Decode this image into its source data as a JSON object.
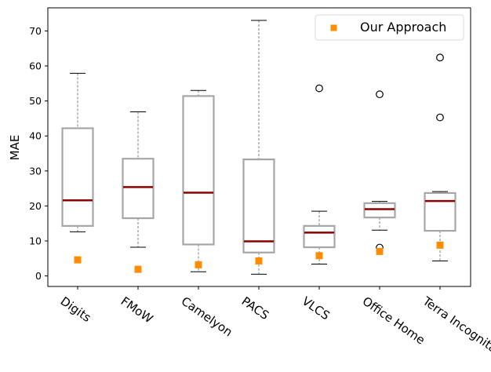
{
  "chart_data": {
    "type": "box",
    "title": "",
    "xlabel": "",
    "ylabel": "MAE",
    "ylim": [
      -3,
      76.6
    ],
    "yticks": [
      0,
      10,
      20,
      30,
      40,
      50,
      60,
      70
    ],
    "grid": false,
    "legend": {
      "position": "top-right",
      "entries": [
        "Our Approach"
      ]
    },
    "categories": [
      "Digits",
      "FMoW",
      "Camelyon",
      "PACS",
      "VLCS",
      "Office Home",
      "Terra Incognita"
    ],
    "boxes": [
      {
        "whisker_low": 12.6,
        "q1": 14.3,
        "median": 21.6,
        "q3": 42.2,
        "whisker_high": 57.9,
        "outliers": []
      },
      {
        "whisker_low": 8.2,
        "q1": 16.5,
        "median": 25.4,
        "q3": 33.5,
        "whisker_high": 46.9,
        "outliers": []
      },
      {
        "whisker_low": 1.2,
        "q1": 9.0,
        "median": 23.8,
        "q3": 51.4,
        "whisker_high": 53.0,
        "outliers": []
      },
      {
        "whisker_low": 0.5,
        "q1": 6.7,
        "median": 9.9,
        "q3": 33.3,
        "whisker_high": 73.0,
        "outliers": []
      },
      {
        "whisker_low": 3.4,
        "q1": 8.2,
        "median": 12.4,
        "q3": 14.3,
        "whisker_high": 18.5,
        "outliers": [
          53.6
        ]
      },
      {
        "whisker_low": 13.1,
        "q1": 16.7,
        "median": 19.1,
        "q3": 20.8,
        "whisker_high": 21.3,
        "outliers": [
          51.9,
          8.1
        ]
      },
      {
        "whisker_low": 4.3,
        "q1": 12.9,
        "median": 21.4,
        "q3": 23.7,
        "whisker_high": 24.1,
        "outliers": [
          62.4,
          45.3
        ]
      }
    ],
    "series": [
      {
        "name": "Our Approach",
        "marker": "square",
        "color": "#ff8c00",
        "values": [
          4.6,
          1.9,
          3.2,
          4.3,
          5.8,
          7.0,
          8.8
        ]
      }
    ],
    "colors": {
      "box": "#a6a6a6",
      "median": "#8b0000",
      "whisker": "#808080",
      "cap": "#000000"
    }
  }
}
